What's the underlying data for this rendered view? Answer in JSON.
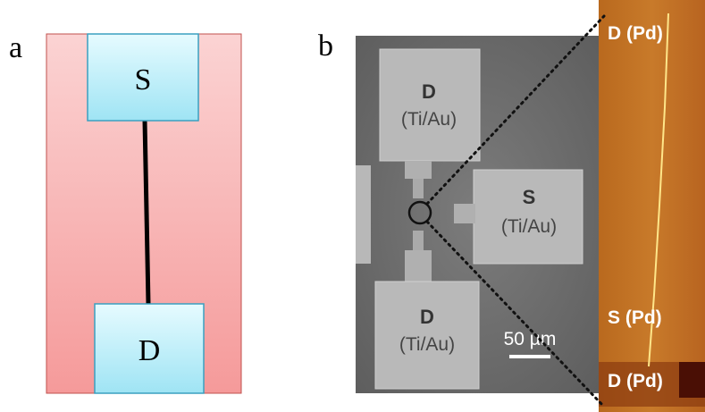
{
  "panel_a": {
    "label": "a",
    "source": "S",
    "drain": "D"
  },
  "panel_b": {
    "label": "b",
    "sem": {
      "pads": [
        {
          "name": "D",
          "material": "(Ti/Au)"
        },
        {
          "name": "S",
          "material": "(Ti/Au)"
        },
        {
          "name": "D",
          "material": "(Ti/Au)"
        }
      ],
      "scale_bar": "50 µm"
    },
    "afm": {
      "labels": [
        "D (Pd)",
        "S (Pd)",
        "D (Pd)"
      ]
    }
  }
}
